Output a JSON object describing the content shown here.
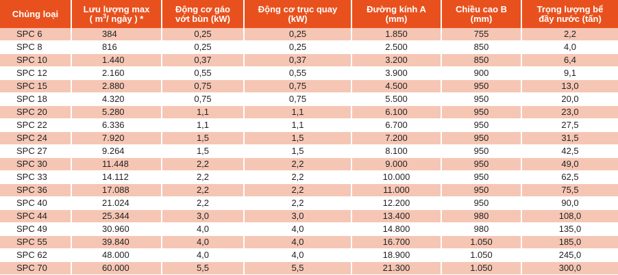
{
  "table": {
    "headers": {
      "model": "Chủng loại",
      "flow_line1": "Lưu lượng max",
      "flow_line2_pre": "( m",
      "flow_line2_sup": "3",
      "flow_line2_post": "/ ngày ) *",
      "scraper_line1": "Động cơ gáo",
      "scraper_line2": "vớt bùn (kW)",
      "rotor_line1": "Động cơ trục quay",
      "rotor_line2": "(kW)",
      "diameter_line1": "Đường kính A",
      "diameter_line2": "(mm)",
      "height_line1": "Chiều cao B",
      "height_line2": "(mm)",
      "weight_line1": "Trọng lượng bể",
      "weight_line2": "đầy nước (tấn)"
    },
    "rows": [
      [
        "SPC 6",
        "384",
        "0,25",
        "0,25",
        "1.850",
        "755",
        "2,2"
      ],
      [
        "SPC 8",
        "816",
        "0,25",
        "0,25",
        "2.500",
        "850",
        "4,0"
      ],
      [
        "SPC 10",
        "1.440",
        "0,37",
        "0,37",
        "3.200",
        "850",
        "6,4"
      ],
      [
        "SPC 12",
        "2.160",
        "0,55",
        "0,55",
        "3.900",
        "900",
        "9,1"
      ],
      [
        "SPC 15",
        "2.880",
        "0,75",
        "0,75",
        "4.500",
        "950",
        "13,0"
      ],
      [
        "SPC 18",
        "4.320",
        "0,75",
        "0,75",
        "5.500",
        "950",
        "20,0"
      ],
      [
        "SPC 20",
        "5.280",
        "1,1",
        "1,1",
        "6.100",
        "950",
        "23,0"
      ],
      [
        "SPC 22",
        "6.336",
        "1,1",
        "1,1",
        "6.700",
        "950",
        "27,5"
      ],
      [
        "SPC 24",
        "7.920",
        "1,5",
        "1,5",
        "7.200",
        "950",
        "31,5"
      ],
      [
        "SPC 27",
        "9.264",
        "1,5",
        "1,5",
        "8.100",
        "950",
        "42,5"
      ],
      [
        "SPC 30",
        "11.448",
        "2,2",
        "2,2",
        "9.000",
        "950",
        "49,0"
      ],
      [
        "SPC 33",
        "14.112",
        "2,2",
        "2,2",
        "10.000",
        "950",
        "62,5"
      ],
      [
        "SPC 36",
        "17.088",
        "2,2",
        "2,2",
        "11.000",
        "950",
        "75,5"
      ],
      [
        "SPC 40",
        "21.024",
        "2,2",
        "2,2",
        "12.200",
        "950",
        "90,0"
      ],
      [
        "SPC 44",
        "25.344",
        "3,0",
        "3,0",
        "13.400",
        "980",
        "108,0"
      ],
      [
        "SPC 49",
        "30.960",
        "4,0",
        "4,0",
        "14.800",
        "980",
        "135,0"
      ],
      [
        "SPC 55",
        "39.840",
        "4,0",
        "4,0",
        "16.700",
        "1.050",
        "185,0"
      ],
      [
        "SPC 62",
        "48.000",
        "4,0",
        "4,0",
        "18.900",
        "1.050",
        "245,0"
      ],
      [
        "SPC 70",
        "60.000",
        "5,5",
        "5,5",
        "21.300",
        "1.050",
        "300,0"
      ]
    ]
  },
  "colors": {
    "header_bg": "#e8511e",
    "header_text": "#ffffff",
    "odd_row_bg": "#f6c6b5",
    "even_row_bg": "#ffffff"
  }
}
